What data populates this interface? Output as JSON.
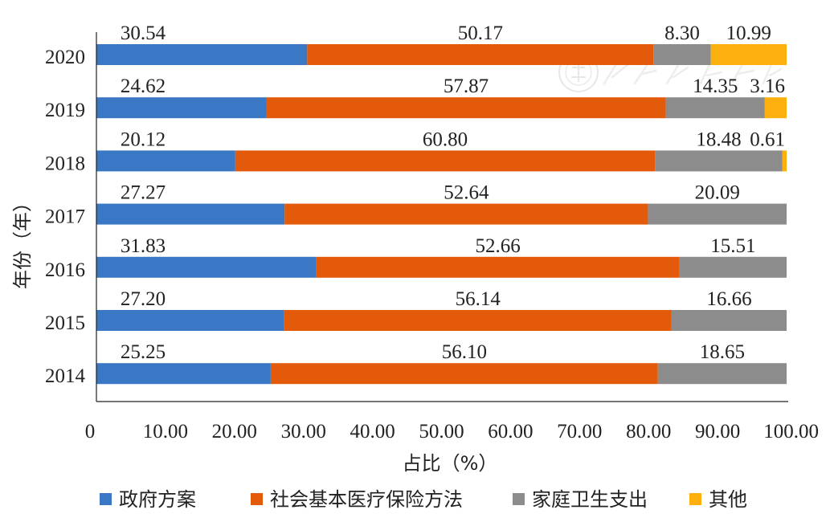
{
  "chart_data": {
    "type": "bar",
    "orientation": "horizontal",
    "stacked": true,
    "categories": [
      "2020",
      "2019",
      "2018",
      "2017",
      "2016",
      "2015",
      "2014"
    ],
    "series": [
      {
        "name": "政府方案",
        "color": "#3a78c5",
        "values": [
          30.54,
          24.62,
          20.12,
          27.27,
          31.83,
          27.2,
          25.25
        ]
      },
      {
        "name": "社会基本医疗保险方法",
        "color": "#e35a0b",
        "values": [
          50.17,
          57.87,
          60.8,
          52.64,
          52.66,
          56.14,
          56.1
        ]
      },
      {
        "name": "家庭卫生支出",
        "color": "#8c8c8c",
        "values": [
          8.3,
          14.35,
          18.48,
          20.09,
          15.51,
          16.66,
          18.65
        ]
      },
      {
        "name": "其他",
        "color": "#fdb00d",
        "values": [
          10.99,
          3.16,
          0.61,
          null,
          null,
          null,
          null
        ]
      }
    ],
    "value_labels": [
      [
        "30.54",
        "24.62",
        "20.12",
        "27.27",
        "31.83",
        "27.20",
        "25.25"
      ],
      [
        "50.17",
        "57.87",
        "60.80",
        "52.64",
        "52.66",
        "56.14",
        "56.10"
      ],
      [
        "8.30",
        "14.35",
        "18.48",
        "20.09",
        "15.51",
        "16.66",
        "18.65"
      ],
      [
        "10.99",
        "3.16",
        "0.61",
        "",
        "",
        "",
        ""
      ]
    ],
    "xlabel": "占比（%）",
    "ylabel": "年份（年）",
    "xlim": [
      0,
      100
    ],
    "xticks": [
      "0",
      "10.00",
      "20.00",
      "30.00",
      "40.00",
      "50.00",
      "60.00",
      "70.00",
      "80.00",
      "90.00",
      "100.00"
    ],
    "grid": false,
    "legend_position": "bottom"
  }
}
